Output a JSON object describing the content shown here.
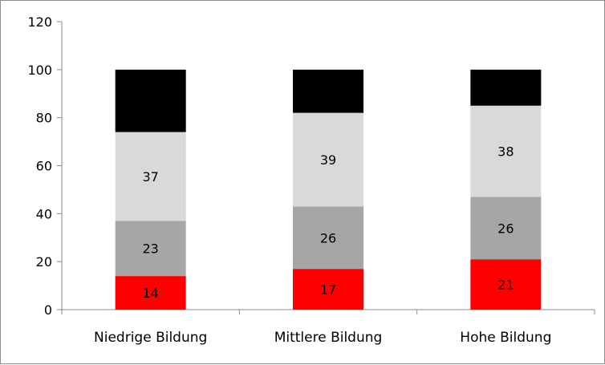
{
  "chart_data": {
    "type": "bar",
    "stacked": true,
    "categories": [
      "Niedrige Bildung",
      "Mittlere Bildung",
      "Hohe Bildung"
    ],
    "series": [
      {
        "values": [
          14,
          17,
          21
        ],
        "labels": [
          "14",
          "17",
          "21"
        ],
        "color": "#ff0000"
      },
      {
        "values": [
          23,
          26,
          26
        ],
        "labels": [
          "23",
          "26",
          "26"
        ],
        "color": "#a6a6a6"
      },
      {
        "values": [
          37,
          39,
          38
        ],
        "labels": [
          "37",
          "39",
          "38"
        ],
        "color": "#d9d9d9"
      },
      {
        "values": [
          26,
          18,
          15
        ],
        "labels": [
          "",
          "",
          ""
        ],
        "color": "#000000"
      }
    ],
    "ylim": [
      0,
      120
    ],
    "yticks": [
      "0",
      "20",
      "40",
      "60",
      "80",
      "100",
      "120"
    ],
    "title": "",
    "xlabel": "",
    "ylabel": "",
    "grid": false,
    "legend": "none"
  }
}
